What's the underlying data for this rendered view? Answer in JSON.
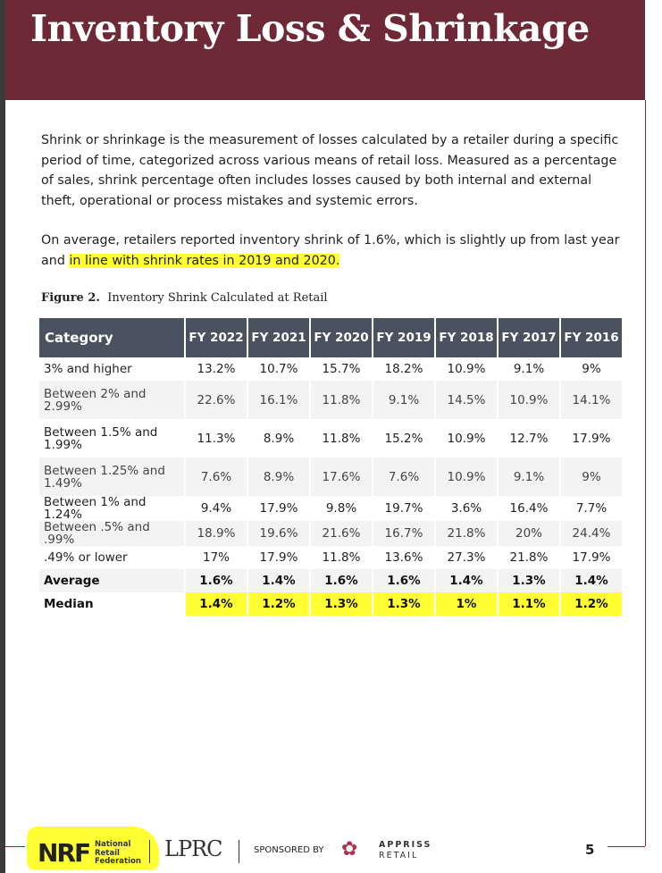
{
  "title": "Inventory Loss & Shrinkage",
  "para1": "Shrink or shrinkage is the measurement of losses calculated by a retailer during a specific period of time, categorized across various means of retail loss. Measured as a percentage of sales, shrink percentage often includes losses caused by both internal and external theft, operational or process mistakes and systemic errors.",
  "para2_a": "On average, retailers reported inventory shrink of 1.6%, which is slightly up from last year and ",
  "para2_b": "in line with shrink rates in 2019 and 2020.",
  "figure_label": "Figure 2.",
  "figure_title": "Inventory Shrink Calculated at Retail",
  "table": {
    "headers": [
      "Category",
      "FY 2022",
      "FY 2021",
      "FY 2020",
      "FY 2019",
      "FY 2018",
      "FY 2017",
      "FY 2016"
    ],
    "rows": [
      [
        "3% and higher",
        "13.2%",
        "10.7%",
        "15.7%",
        "18.2%",
        "10.9%",
        "9.1%",
        "9%"
      ],
      [
        "Between 2% and 2.99%",
        "22.6%",
        "16.1%",
        "11.8%",
        "9.1%",
        "14.5%",
        "10.9%",
        "14.1%"
      ],
      [
        "Between 1.5% and 1.99%",
        "11.3%",
        "8.9%",
        "11.8%",
        "15.2%",
        "10.9%",
        "12.7%",
        "17.9%"
      ],
      [
        "Between 1.25% and 1.49%",
        "7.6%",
        "8.9%",
        "17.6%",
        "7.6%",
        "10.9%",
        "9.1%",
        "9%"
      ],
      [
        "Between 1% and 1.24%",
        "9.4%",
        "17.9%",
        "9.8%",
        "19.7%",
        "3.6%",
        "16.4%",
        "7.7%"
      ],
      [
        "Between .5% and .99%",
        "18.9%",
        "19.6%",
        "21.6%",
        "16.7%",
        "21.8%",
        "20%",
        "24.4%"
      ],
      [
        ".49% or lower",
        "17%",
        "17.9%",
        "11.8%",
        "13.6%",
        "27.3%",
        "21.8%",
        "17.9%"
      ],
      [
        "Average",
        "1.6%",
        "1.4%",
        "1.6%",
        "1.6%",
        "1.4%",
        "1.3%",
        "1.4%"
      ],
      [
        "Median",
        "1.4%",
        "1.2%",
        "1.3%",
        "1.3%",
        "1%",
        "1.1%",
        "1.2%"
      ]
    ]
  },
  "footer": {
    "nrf": "NRF",
    "nrf_full": "National Retail Federation",
    "lprc": "LPRC",
    "sponsored": "SPONSORED BY",
    "appriss": "APPRISS",
    "retail": "RETAIL",
    "page": "5"
  },
  "colors": {
    "header": "#6e2836",
    "table_header": "#4a5260",
    "highlight": "#ffff33"
  }
}
